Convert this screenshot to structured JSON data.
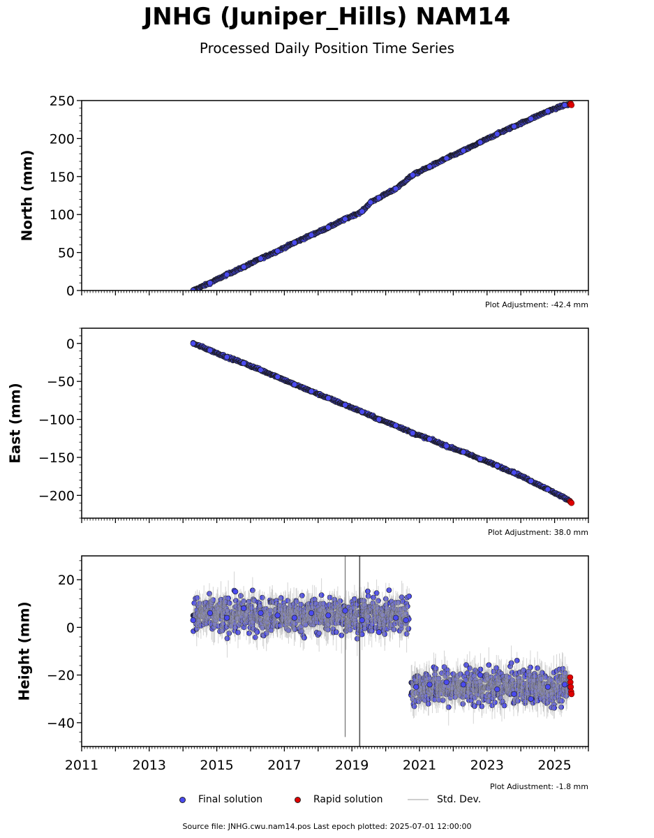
{
  "header": {
    "title": "JNHG (Juniper_Hills) NAM14",
    "subtitle": "Processed Daily Position Time Series"
  },
  "legend": {
    "final": "Final solution",
    "rapid": "Rapid solution",
    "std": "Std. Dev."
  },
  "footer": {
    "text": "Source file: JNHG.cwu.nam14.pos  Last epoch plotted: 2025-07-01 12:00:00"
  },
  "colors": {
    "final": "#4a4af0",
    "rapid": "#e00000",
    "std": "#a0a0a0",
    "marker_edge": "#1a1a1a"
  },
  "chart_data": [
    {
      "type": "scatter",
      "ylabel": "North (mm)",
      "adjustment": "Plot Adjustment: -42.4 mm",
      "xlim": [
        2011,
        2026
      ],
      "ylim": [
        0,
        250
      ],
      "yticks": [
        0,
        50,
        100,
        150,
        200,
        250
      ],
      "ytick_labels": [
        "0",
        "50",
        "100",
        "150",
        "200",
        "250"
      ],
      "xtick_labels_shown": false,
      "series": [
        {
          "name": "Final solution",
          "x": [
            2014.3,
            2014.8,
            2015.3,
            2015.8,
            2016.3,
            2016.8,
            2017.3,
            2017.8,
            2018.3,
            2018.8,
            2019.3,
            2019.55,
            2019.8,
            2020.3,
            2020.8,
            2021.3,
            2021.8,
            2022.3,
            2022.8,
            2023.3,
            2023.8,
            2024.3,
            2024.8,
            2025.3,
            2025.45
          ],
          "y": [
            0,
            10,
            21,
            31,
            42,
            52,
            63,
            73,
            83,
            94,
            104,
            116,
            122,
            134,
            152,
            163,
            174,
            184,
            195,
            206,
            216,
            226,
            236,
            244,
            245
          ]
        },
        {
          "name": "Rapid solution",
          "x": [
            2025.46,
            2025.48,
            2025.5
          ],
          "y": [
            245,
            246,
            244
          ]
        }
      ]
    },
    {
      "type": "scatter",
      "ylabel": "East (mm)",
      "adjustment": "Plot Adjustment: 38.0 mm",
      "xlim": [
        2011,
        2026
      ],
      "ylim": [
        -230,
        20
      ],
      "yticks": [
        0,
        -50,
        -100,
        -150,
        -200
      ],
      "ytick_labels": [
        "0",
        "−50",
        "−100",
        "−150",
        "−200"
      ],
      "xtick_labels_shown": false,
      "series": [
        {
          "name": "Final solution",
          "x": [
            2014.3,
            2014.8,
            2015.3,
            2015.8,
            2016.3,
            2016.8,
            2017.3,
            2017.8,
            2018.3,
            2018.8,
            2019.3,
            2019.8,
            2020.3,
            2020.8,
            2021.3,
            2021.8,
            2022.3,
            2022.8,
            2023.3,
            2023.8,
            2024.3,
            2024.8,
            2025.45
          ],
          "y": [
            0,
            -9,
            -18,
            -26,
            -35,
            -44,
            -54,
            -63,
            -72,
            -81,
            -90,
            -100,
            -108,
            -118,
            -126,
            -135,
            -143,
            -152,
            -161,
            -170,
            -181,
            -192,
            -207
          ]
        },
        {
          "name": "Rapid solution",
          "x": [
            2025.46,
            2025.48,
            2025.5
          ],
          "y": [
            -208,
            -209,
            -210
          ]
        }
      ]
    },
    {
      "type": "scatter",
      "ylabel": "Height (mm)",
      "adjustment": "Plot Adjustment: -1.8 mm",
      "xlim": [
        2011,
        2026
      ],
      "ylim": [
        -50,
        30
      ],
      "yticks": [
        20,
        0,
        -20,
        -40
      ],
      "ytick_labels": [
        "20",
        "0",
        "−20",
        "−40"
      ],
      "xticks": [
        2011,
        2013,
        2015,
        2017,
        2019,
        2021,
        2023,
        2025
      ],
      "xtick_labels": [
        "2011",
        "2013",
        "2015",
        "2017",
        "2019",
        "2021",
        "2023",
        "2025"
      ],
      "xtick_labels_shown": true,
      "step": {
        "before": {
          "start": 2014.3,
          "end": 2020.7,
          "mean": 5,
          "spread": 7
        },
        "after": {
          "start": 2020.75,
          "end": 2025.45,
          "mean": -25,
          "spread": 7
        }
      },
      "series": [
        {
          "name": "Final solution",
          "x": [
            2014.3,
            2014.8,
            2015.3,
            2015.55,
            2015.8,
            2016.3,
            2016.8,
            2017.3,
            2017.8,
            2018.3,
            2018.8,
            2019.3,
            2019.8,
            2020.3,
            2020.6,
            2020.9,
            2021.3,
            2021.8,
            2022.3,
            2022.8,
            2023.3,
            2023.8,
            2024.3,
            2024.8,
            2025.3,
            2025.45
          ],
          "y": [
            3,
            6,
            4,
            15,
            8,
            6,
            5,
            4,
            6,
            5,
            7,
            3,
            -2,
            4,
            3,
            -25,
            -24,
            -23,
            -24,
            -20,
            -26,
            -28,
            -30,
            -25,
            -24,
            -25
          ]
        },
        {
          "name": "Rapid solution",
          "x": [
            2025.46,
            2025.47,
            2025.48,
            2025.49,
            2025.5
          ],
          "y": [
            -21,
            -23,
            -25,
            -27,
            -28
          ]
        }
      ]
    }
  ]
}
